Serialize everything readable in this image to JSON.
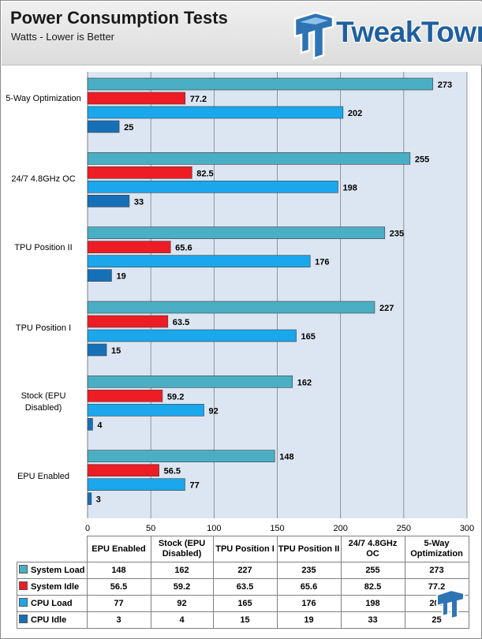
{
  "header": {
    "title": "Power Consumption Tests",
    "subtitle": "Watts - Lower is Better",
    "logo_text": "TweakTown",
    "logo_icon": "tweaktown-logo-icon"
  },
  "colors": {
    "System Load": "#4aaec4",
    "System Idle": "#ee1c24",
    "CPU Load": "#1aa7ec",
    "CPU Idle": "#1670b8",
    "plot_background": "#dce6f2",
    "gridline": "#7f7f7f"
  },
  "chart_data": {
    "type": "bar",
    "orientation": "horizontal",
    "title": "Power Consumption Tests",
    "subtitle": "Watts - Lower is Better",
    "categories": [
      "EPU Enabled",
      "Stock (EPU Disabled)",
      "TPU Position I",
      "TPU Position II",
      "24/7 4.8GHz OC",
      "5-Way Optimization"
    ],
    "series": [
      {
        "name": "System Load",
        "values": [
          148,
          162,
          227,
          235,
          255,
          273
        ]
      },
      {
        "name": "System Idle",
        "values": [
          56.5,
          59.2,
          63.5,
          65.6,
          82.5,
          77.2
        ]
      },
      {
        "name": "CPU Load",
        "values": [
          77,
          92,
          165,
          176,
          198,
          202
        ]
      },
      {
        "name": "CPU Idle",
        "values": [
          3,
          4,
          15,
          19,
          33,
          25
        ]
      }
    ],
    "xlim": [
      0,
      300
    ],
    "x_ticks": [
      "0",
      "50",
      "100",
      "150",
      "200",
      "250",
      "300"
    ],
    "grid": true,
    "legend": "data table below chart"
  },
  "table": {
    "columns": [
      "EPU Enabled",
      "Stock (EPU Disabled)",
      "TPU Position I",
      "TPU Position II",
      "24/7 4.8GHz OC",
      "5-Way Optimization"
    ],
    "rows": [
      {
        "label": "System Load",
        "cells": [
          "148",
          "162",
          "227",
          "235",
          "255",
          "273"
        ]
      },
      {
        "label": "System Idle",
        "cells": [
          "56.5",
          "59.2",
          "63.5",
          "65.6",
          "82.5",
          "77.2"
        ]
      },
      {
        "label": "CPU Load",
        "cells": [
          "77",
          "92",
          "165",
          "176",
          "198",
          "202"
        ]
      },
      {
        "label": "CPU Idle",
        "cells": [
          "3",
          "4",
          "15",
          "19",
          "33",
          "25"
        ]
      }
    ]
  }
}
